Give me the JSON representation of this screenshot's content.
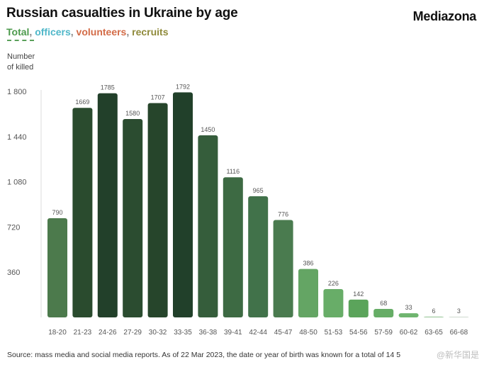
{
  "header": {
    "title": "Russian casualties in Ukraine by age",
    "brand": "Mediazona"
  },
  "legend": [
    {
      "text": "Total",
      "color": "#4c9a4c"
    },
    {
      "text": ", ",
      "color": "#888888"
    },
    {
      "text": "officers",
      "color": "#4fb7c9"
    },
    {
      "text": ", ",
      "color": "#888888"
    },
    {
      "text": "volunteers",
      "color": "#d36b47"
    },
    {
      "text": ", ",
      "color": "#888888"
    },
    {
      "text": "recruits",
      "color": "#8f8a3a"
    }
  ],
  "footer": {
    "source": "Source: mass media and social media reports. As of 22 Mar 2023, the date or year of birth was known for a total of 14 5",
    "watermark": "@新华国是"
  },
  "chart_data": {
    "type": "bar",
    "title": "Russian casualties in Ukraine by age",
    "xlabel": "",
    "ylabel": "Number of killed",
    "ylabel_lines": [
      "Number",
      "of killed"
    ],
    "ylim": [
      0,
      1800
    ],
    "yticks": [
      360,
      720,
      1080,
      1440,
      1800
    ],
    "ytick_labels": [
      "360",
      "720",
      "1 080",
      "1 440",
      "1 800"
    ],
    "categories": [
      "18-20",
      "21-23",
      "24-26",
      "27-29",
      "30-32",
      "33-35",
      "36-38",
      "39-41",
      "42-44",
      "45-47",
      "48-50",
      "51-53",
      "54-56",
      "57-59",
      "60-62",
      "63-65",
      "66-68"
    ],
    "values": [
      790,
      1669,
      1785,
      1580,
      1707,
      1792,
      1450,
      1116,
      965,
      776,
      386,
      226,
      142,
      68,
      33,
      6,
      3
    ],
    "colors": [
      "#4c7a4c",
      "#2a4b2e",
      "#22402a",
      "#2b4c30",
      "#26452b",
      "#21402a",
      "#355d3b",
      "#3d6a43",
      "#41724a",
      "#4a7b4f",
      "#64a564",
      "#68ad68",
      "#5ba45b",
      "#66ad66",
      "#6fb56f",
      "#9bc79b",
      "#cfd9cf"
    ]
  }
}
